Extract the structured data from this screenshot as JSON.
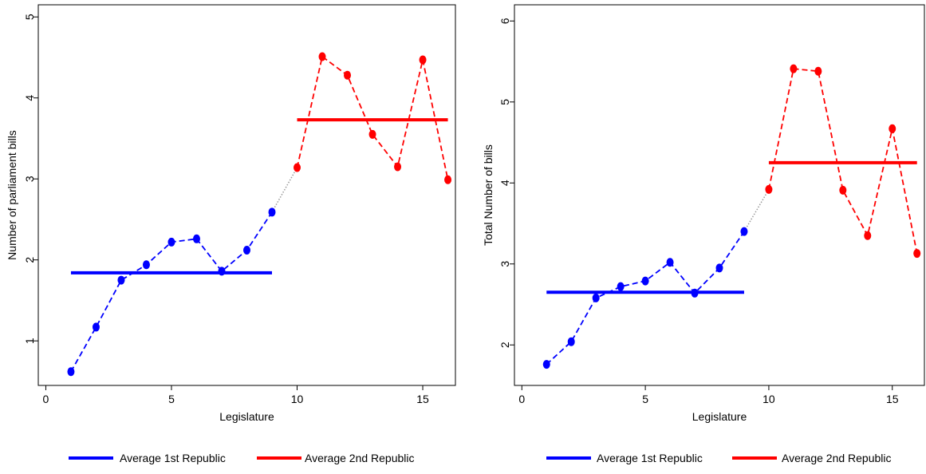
{
  "chart_data": [
    {
      "type": "line",
      "xlabel": "Legislature",
      "ylabel": "Number of parliament bills",
      "xlim": [
        -0.3,
        16.3
      ],
      "ylim": [
        0.45,
        5.15
      ],
      "xticks": [
        0,
        5,
        10,
        15
      ],
      "yticks": [
        1,
        2,
        3,
        4,
        5
      ],
      "grid": false,
      "legend_position": "bottom",
      "series": [
        {
          "name": "1st Republic",
          "color": "#0000ff",
          "style": "dashed-markers",
          "x": [
            1,
            2,
            3,
            4,
            5,
            6,
            7,
            8,
            9
          ],
          "y": [
            0.62,
            1.17,
            1.75,
            1.94,
            2.22,
            2.26,
            1.86,
            2.12,
            2.59
          ]
        },
        {
          "name": "2nd Republic",
          "color": "#ff0000",
          "style": "dashed-markers",
          "x": [
            10,
            11,
            12,
            13,
            14,
            15,
            16
          ],
          "y": [
            3.14,
            4.51,
            4.28,
            3.55,
            3.15,
            4.47,
            2.99
          ]
        }
      ],
      "connector": {
        "x": [
          9,
          10
        ],
        "y": [
          2.59,
          3.14
        ],
        "color": "#999999",
        "style": "dotted"
      },
      "averages": [
        {
          "label": "Average 1st Republic",
          "color": "#0000ff",
          "value": 1.84,
          "x_range": [
            1,
            9
          ]
        },
        {
          "label": "Average 2nd Republic",
          "color": "#ff0000",
          "value": 3.73,
          "x_range": [
            10,
            16
          ]
        }
      ]
    },
    {
      "type": "line",
      "xlabel": "Legislature",
      "ylabel": "Total Number of  bills",
      "xlim": [
        -0.3,
        16.3
      ],
      "ylim": [
        1.5,
        6.2
      ],
      "xticks": [
        0,
        5,
        10,
        15
      ],
      "yticks": [
        2,
        3,
        4,
        5,
        6
      ],
      "grid": false,
      "legend_position": "bottom",
      "series": [
        {
          "name": "1st Republic",
          "color": "#0000ff",
          "style": "dashed-markers",
          "x": [
            1,
            2,
            3,
            4,
            5,
            6,
            7,
            8,
            9
          ],
          "y": [
            1.76,
            2.04,
            2.58,
            2.72,
            2.79,
            3.02,
            2.64,
            2.95,
            3.4
          ]
        },
        {
          "name": "2nd Republic",
          "color": "#ff0000",
          "style": "dashed-markers",
          "x": [
            10,
            11,
            12,
            13,
            14,
            15,
            16
          ],
          "y": [
            3.92,
            5.41,
            5.38,
            3.91,
            3.35,
            4.67,
            3.13
          ]
        }
      ],
      "connector": {
        "x": [
          9,
          10
        ],
        "y": [
          3.4,
          3.92
        ],
        "color": "#999999",
        "style": "dotted"
      },
      "averages": [
        {
          "label": "Average 1st Republic",
          "color": "#0000ff",
          "value": 2.65,
          "x_range": [
            1,
            9
          ]
        },
        {
          "label": "Average 2nd Republic",
          "color": "#ff0000",
          "value": 4.25,
          "x_range": [
            10,
            16
          ]
        }
      ]
    }
  ]
}
